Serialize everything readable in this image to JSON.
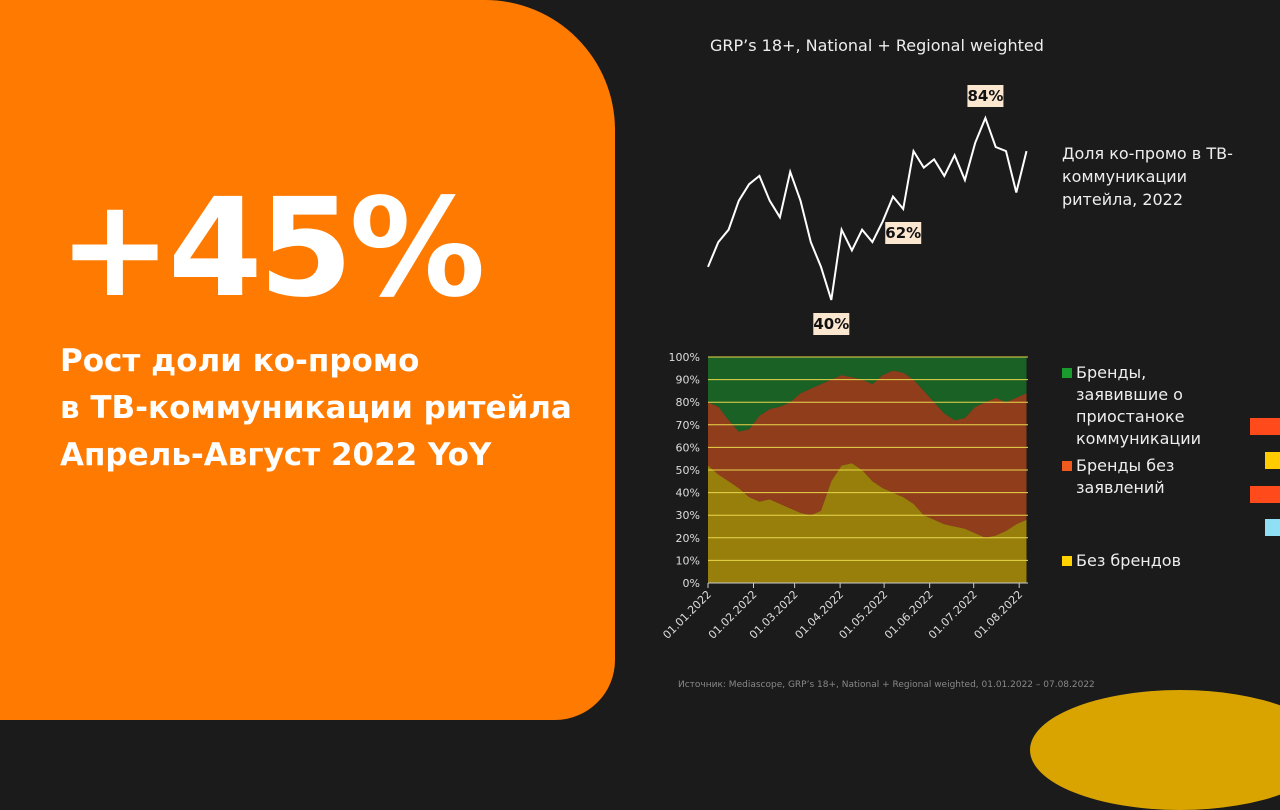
{
  "slide": {
    "headline": "+45%",
    "subtitle_lines": [
      "Рост доли ко-промо",
      "в ТВ-коммуникации ритейла",
      "Апрель-Август 2022 YoY"
    ],
    "chart_header": "GRP’s 18+, National + Regional weighted",
    "source": "Источник: Mediascope, GRP’s 18+, National + Regional weighted, 01.01.2022 – 07.08.2022"
  },
  "chart_data": [
    {
      "type": "line",
      "title": "Доля ко-промо в ТВ-коммуникации ритейла, 2022",
      "color": "#ffffff",
      "x": [
        "01.01.2022",
        "08.01.2022",
        "15.01.2022",
        "22.01.2022",
        "29.01.2022",
        "05.02.2022",
        "12.02.2022",
        "19.02.2022",
        "26.02.2022",
        "05.03.2022",
        "12.03.2022",
        "19.03.2022",
        "26.03.2022",
        "02.04.2022",
        "09.04.2022",
        "16.04.2022",
        "23.04.2022",
        "30.04.2022",
        "07.05.2022",
        "14.05.2022",
        "21.05.2022",
        "28.05.2022",
        "04.06.2022",
        "11.06.2022",
        "18.06.2022",
        "25.06.2022",
        "02.07.2022",
        "09.07.2022",
        "16.07.2022",
        "23.07.2022",
        "30.07.2022",
        "06.08.2022"
      ],
      "xlim": [
        "01.01.2022",
        "07.08.2022"
      ],
      "values": [
        48,
        54,
        57,
        64,
        68,
        70,
        64,
        60,
        71,
        64,
        54,
        48,
        40,
        57,
        52,
        57,
        54,
        59,
        65,
        62,
        76,
        72,
        74,
        70,
        75,
        69,
        78,
        84,
        77,
        76,
        66,
        76
      ],
      "value_labels": [
        null,
        null,
        null,
        null,
        null,
        null,
        null,
        null,
        null,
        null,
        null,
        null,
        "40%",
        null,
        null,
        null,
        null,
        null,
        null,
        "62%",
        null,
        null,
        null,
        null,
        null,
        null,
        null,
        "84%",
        null,
        null,
        null,
        null
      ]
    },
    {
      "type": "stacked_area",
      "x": [
        "01.01.2022",
        "08.01.2022",
        "15.01.2022",
        "22.01.2022",
        "29.01.2022",
        "05.02.2022",
        "12.02.2022",
        "19.02.2022",
        "26.02.2022",
        "05.03.2022",
        "12.03.2022",
        "19.03.2022",
        "26.03.2022",
        "02.04.2022",
        "09.04.2022",
        "16.04.2022",
        "23.04.2022",
        "30.04.2022",
        "07.05.2022",
        "14.05.2022",
        "21.05.2022",
        "28.05.2022",
        "04.06.2022",
        "11.06.2022",
        "18.06.2022",
        "25.06.2022",
        "02.07.2022",
        "09.07.2022",
        "16.07.2022",
        "23.07.2022",
        "30.07.2022",
        "06.08.2022"
      ],
      "xlim": [
        "01.01.2022",
        "07.08.2022"
      ],
      "xticks": [
        "01.01.2022",
        "01.02.2022",
        "01.03.2022",
        "01.04.2022",
        "01.05.2022",
        "01.06.2022",
        "01.07.2022",
        "01.08.2022"
      ],
      "ylim": [
        0,
        100
      ],
      "yticks": [
        {
          "value": 0,
          "label": "0%"
        },
        {
          "value": 10,
          "label": "10%"
        },
        {
          "value": 20,
          "label": "20%"
        },
        {
          "value": 30,
          "label": "30%"
        },
        {
          "value": 40,
          "label": "40%"
        },
        {
          "value": 50,
          "label": "50%"
        },
        {
          "value": 60,
          "label": "60%"
        },
        {
          "value": 70,
          "label": "70%"
        },
        {
          "value": 80,
          "label": "80%"
        },
        {
          "value": 90,
          "label": "90%"
        },
        {
          "value": 100,
          "label": "100%"
        }
      ],
      "grid": true,
      "series": [
        {
          "name": "Без брендов",
          "color": "#ffd200",
          "values": [
            52,
            48,
            45,
            42,
            38,
            36,
            37,
            35,
            33,
            31,
            30,
            32,
            45,
            52,
            53,
            50,
            45,
            42,
            40,
            38,
            35,
            30,
            28,
            26,
            25,
            24,
            22,
            20,
            21,
            23,
            26,
            28
          ]
        },
        {
          "name": "Бренды без заявлений",
          "color": "#f05a1e",
          "values": [
            28,
            30,
            27,
            25,
            30,
            38,
            40,
            43,
            47,
            53,
            56,
            56,
            45,
            40,
            38,
            40,
            43,
            50,
            54,
            55,
            55,
            55,
            52,
            49,
            47,
            49,
            56,
            60,
            61,
            57,
            56,
            56
          ]
        },
        {
          "name": "Бренды, заявившие о приостаноке коммуникации",
          "color": "#1a9b2e",
          "values": [
            20,
            22,
            28,
            33,
            32,
            26,
            23,
            22,
            20,
            16,
            14,
            12,
            10,
            8,
            9,
            10,
            12,
            8,
            6,
            7,
            10,
            15,
            20,
            25,
            28,
            27,
            22,
            20,
            18,
            20,
            18,
            16
          ]
        }
      ]
    }
  ]
}
